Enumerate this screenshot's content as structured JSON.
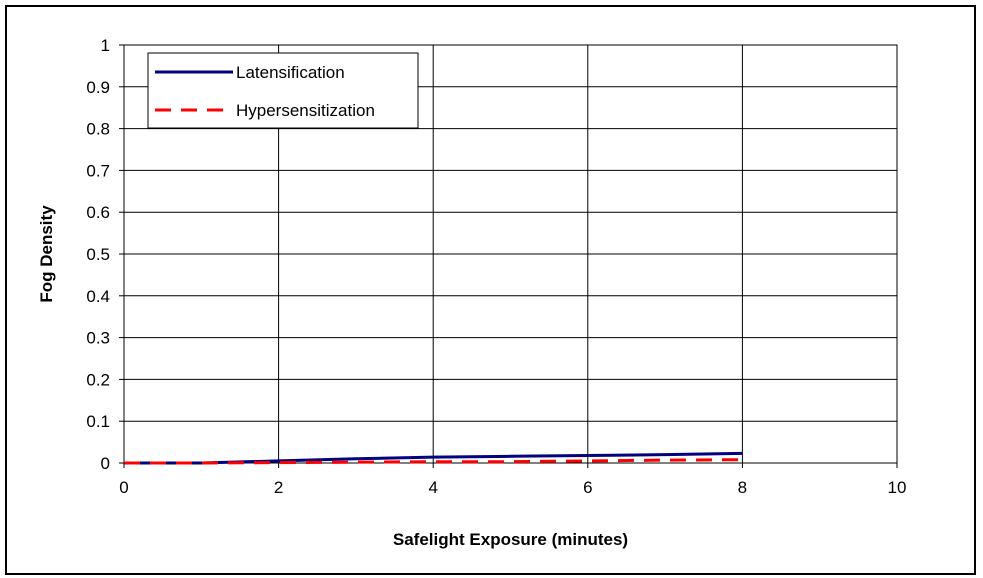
{
  "chart_data": {
    "type": "line",
    "xlabel": "Safelight Exposure (minutes)",
    "ylabel": "Fog Density",
    "xlim": [
      0,
      10
    ],
    "ylim": [
      0,
      1
    ],
    "xticks": [
      "0",
      "2",
      "4",
      "6",
      "8",
      "10"
    ],
    "yticks": [
      "0",
      "0.1",
      "0.2",
      "0.3",
      "0.4",
      "0.5",
      "0.6",
      "0.7",
      "0.8",
      "0.9",
      "1"
    ],
    "grid": true,
    "legend_position": "top-left",
    "series": [
      {
        "name": "Latensification",
        "color": "#000080",
        "style": "solid",
        "x": [
          0,
          1,
          2,
          3,
          4,
          5,
          6,
          7,
          8
        ],
        "y": [
          0,
          0,
          0.005,
          0.01,
          0.014,
          0.016,
          0.018,
          0.02,
          0.023
        ]
      },
      {
        "name": "Hypersensitization",
        "color": "#ff0000",
        "style": "dashed",
        "x": [
          0,
          1,
          2,
          3,
          4,
          5,
          6,
          7,
          8
        ],
        "y": [
          0,
          0,
          0.001,
          0.002,
          0.003,
          0.003,
          0.005,
          0.007,
          0.008
        ]
      }
    ]
  }
}
